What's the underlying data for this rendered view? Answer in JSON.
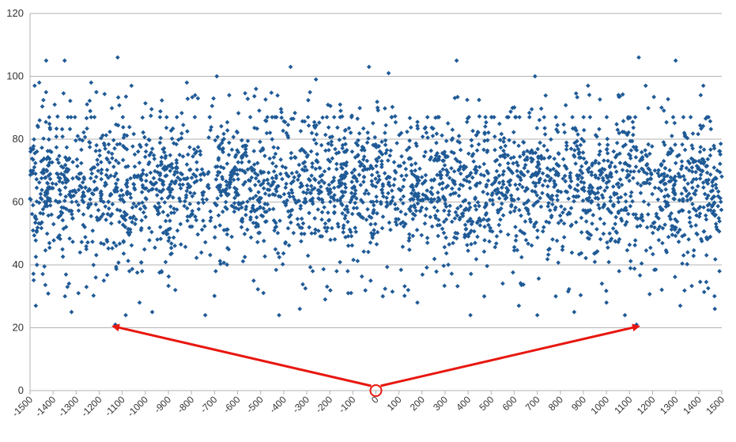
{
  "chart_data": {
    "type": "scatter",
    "title": "",
    "xlabel": "",
    "ylabel": "",
    "xlim": [
      -1500,
      1500
    ],
    "ylim": [
      0,
      120
    ],
    "x_ticks": [
      -1500,
      -1400,
      -1300,
      -1200,
      -1100,
      -1000,
      -900,
      -800,
      -700,
      -600,
      -500,
      -400,
      -300,
      -200,
      -100,
      0,
      100,
      200,
      300,
      400,
      500,
      600,
      700,
      800,
      900,
      1000,
      1100,
      1200,
      1300,
      1400,
      1500
    ],
    "x_tick_labels": [
      "-1500",
      "-1400",
      "-1300",
      "-1200",
      "-1100",
      "-1000",
      "-900",
      "-800",
      "-700",
      "-600",
      "-500",
      "-400",
      "-300",
      "-200",
      "-100",
      "0",
      "100",
      "200",
      "300",
      "400",
      "500",
      "600",
      "700",
      "800",
      "900",
      "1000",
      "1100",
      "1200",
      "1300",
      "1400",
      "1500"
    ],
    "y_ticks": [
      0,
      20,
      40,
      60,
      80,
      100,
      120
    ],
    "y_tick_labels": [
      "0",
      "20",
      "40",
      "60",
      "80",
      "100",
      "120"
    ],
    "grid": "horizontal",
    "legend": "none",
    "series": [
      {
        "values_description_free": true,
        "points": [
          [
            -1480,
            97
          ],
          [
            -1475,
            27
          ],
          [
            -1470,
            40
          ],
          [
            -1460,
            98
          ],
          [
            -1430,
            105
          ],
          [
            -1350,
            105
          ],
          [
            -1320,
            25
          ],
          [
            -1290,
            31
          ],
          [
            -1235,
            98
          ],
          [
            -1215,
            36
          ],
          [
            -1180,
            35
          ],
          [
            -1130,
            21
          ],
          [
            -1120,
            106
          ],
          [
            -1085,
            24
          ],
          [
            -1060,
            97
          ],
          [
            -1025,
            28
          ],
          [
            -970,
            25
          ],
          [
            -870,
            32
          ],
          [
            -820,
            98
          ],
          [
            -740,
            24
          ],
          [
            -690,
            100
          ],
          [
            -520,
            96
          ],
          [
            -420,
            24
          ],
          [
            -370,
            103
          ],
          [
            -330,
            26
          ],
          [
            -260,
            99
          ],
          [
            -220,
            29
          ],
          [
            -120,
            31
          ],
          [
            -30,
            103
          ],
          [
            30,
            30
          ],
          [
            55,
            101
          ],
          [
            140,
            32
          ],
          [
            180,
            28
          ],
          [
            350,
            105
          ],
          [
            410,
            24
          ],
          [
            470,
            30
          ],
          [
            620,
            27
          ],
          [
            690,
            100
          ],
          [
            700,
            24
          ],
          [
            780,
            30
          ],
          [
            860,
            25
          ],
          [
            920,
            97
          ],
          [
            1000,
            28
          ],
          [
            1080,
            24
          ],
          [
            1130,
            21
          ],
          [
            1140,
            106
          ],
          [
            1170,
            97
          ],
          [
            1300,
            105
          ],
          [
            1320,
            27
          ],
          [
            1420,
            97
          ],
          [
            1470,
            26
          ],
          [
            1490,
            38
          ]
        ],
        "bulk": {
          "x_range": [
            -1500,
            1500
          ],
          "count": 2900,
          "y_core_range": [
            40,
            85
          ],
          "y_band_range": [
            30,
            95
          ],
          "y_mean": 65
        }
      }
    ],
    "annotations": [
      {
        "type": "circle",
        "x": 0,
        "y": 0
      },
      {
        "type": "arrow",
        "from": [
          0,
          0
        ],
        "to": [
          -1140,
          21
        ]
      },
      {
        "type": "arrow",
        "from": [
          0,
          0
        ],
        "to": [
          1140,
          21
        ]
      }
    ],
    "colors": {
      "marker": "#1f5a96",
      "grid": "#b3b3b3",
      "axis": "#b3b3b3",
      "annotation": "#e8170f"
    }
  }
}
